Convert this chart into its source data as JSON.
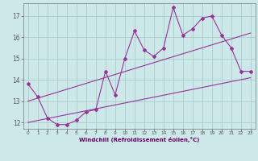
{
  "xlabel": "Windchill (Refroidissement éolien,°C)",
  "background_color": "#cce8e8",
  "grid_color": "#aacccc",
  "line_color": "#993399",
  "x_values": [
    0,
    1,
    2,
    3,
    4,
    5,
    6,
    7,
    8,
    9,
    10,
    11,
    12,
    13,
    14,
    15,
    16,
    17,
    18,
    19,
    20,
    21,
    22,
    23
  ],
  "y_main": [
    13.8,
    13.2,
    12.2,
    11.9,
    11.9,
    12.1,
    12.5,
    12.6,
    14.4,
    13.3,
    15.0,
    16.3,
    15.4,
    15.1,
    15.5,
    17.4,
    16.1,
    16.4,
    16.9,
    17.0,
    16.1,
    15.5,
    14.4,
    14.4
  ],
  "trend1_y_start": 13.0,
  "trend1_y_end": 16.2,
  "trend2_y_start": 12.0,
  "trend2_y_end": 14.1,
  "ylim": [
    11.7,
    17.6
  ],
  "xlim": [
    -0.5,
    23.5
  ],
  "yticks": [
    12,
    13,
    14,
    15,
    16,
    17
  ],
  "xticks": [
    0,
    1,
    2,
    3,
    4,
    5,
    6,
    7,
    8,
    9,
    10,
    11,
    12,
    13,
    14,
    15,
    16,
    17,
    18,
    19,
    20,
    21,
    22,
    23
  ]
}
